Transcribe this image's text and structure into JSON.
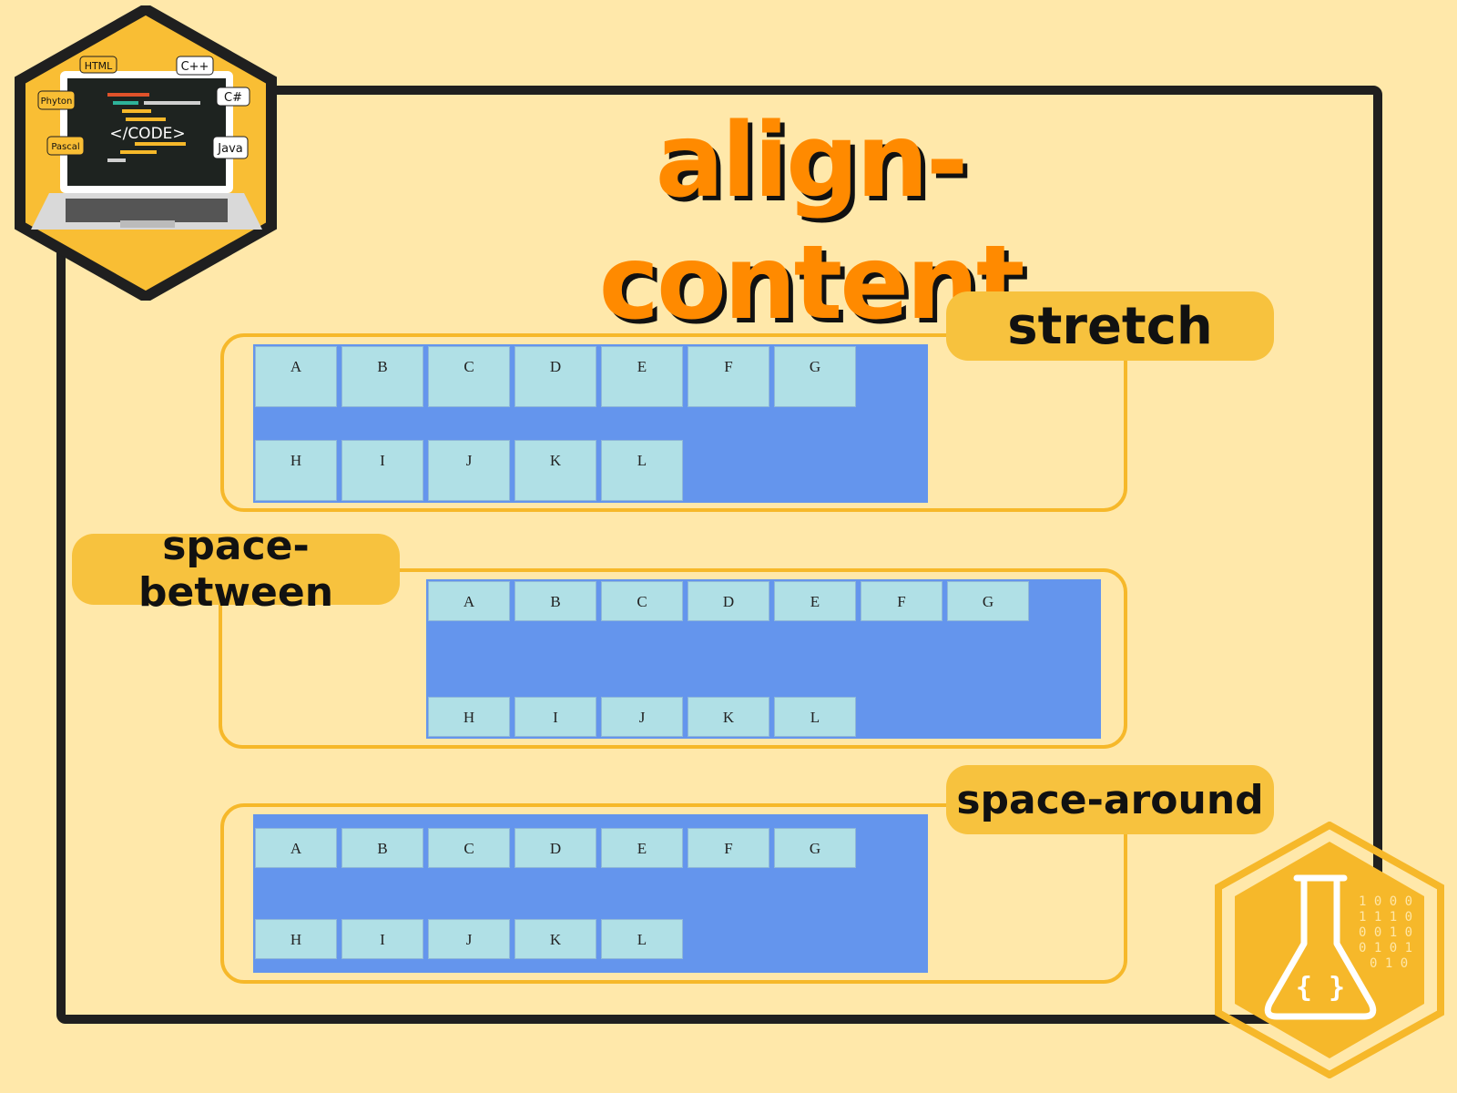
{
  "title": "align-content",
  "logo": {
    "code_text": "</CODE>",
    "languages": [
      "HTML",
      "C++",
      "Phyton",
      "C#",
      "Pascal",
      "Java"
    ]
  },
  "sections": [
    {
      "label": "stretch",
      "row1": [
        "A",
        "B",
        "C",
        "D",
        "E",
        "F",
        "G"
      ],
      "row2": [
        "H",
        "I",
        "J",
        "K",
        "L"
      ]
    },
    {
      "label": "space-between",
      "row1": [
        "A",
        "B",
        "C",
        "D",
        "E",
        "F",
        "G"
      ],
      "row2": [
        "H",
        "I",
        "J",
        "K",
        "L"
      ]
    },
    {
      "label": "space-around",
      "row1": [
        "A",
        "B",
        "C",
        "D",
        "E",
        "F",
        "G"
      ],
      "row2": [
        "H",
        "I",
        "J",
        "K",
        "L"
      ]
    }
  ],
  "flask": {
    "binary_rows": [
      "1 0 0 0",
      "1 1 1 0",
      "0 0 1 0",
      "0 1 0 1",
      "0 1 0"
    ],
    "braces": "{ }"
  },
  "colors": {
    "background": "#FFE8AA",
    "accent_orange": "#FF8A00",
    "pill_yellow": "#F7C23E",
    "container_blue": "#6495ED",
    "item_light_blue": "#B0E0E6"
  }
}
